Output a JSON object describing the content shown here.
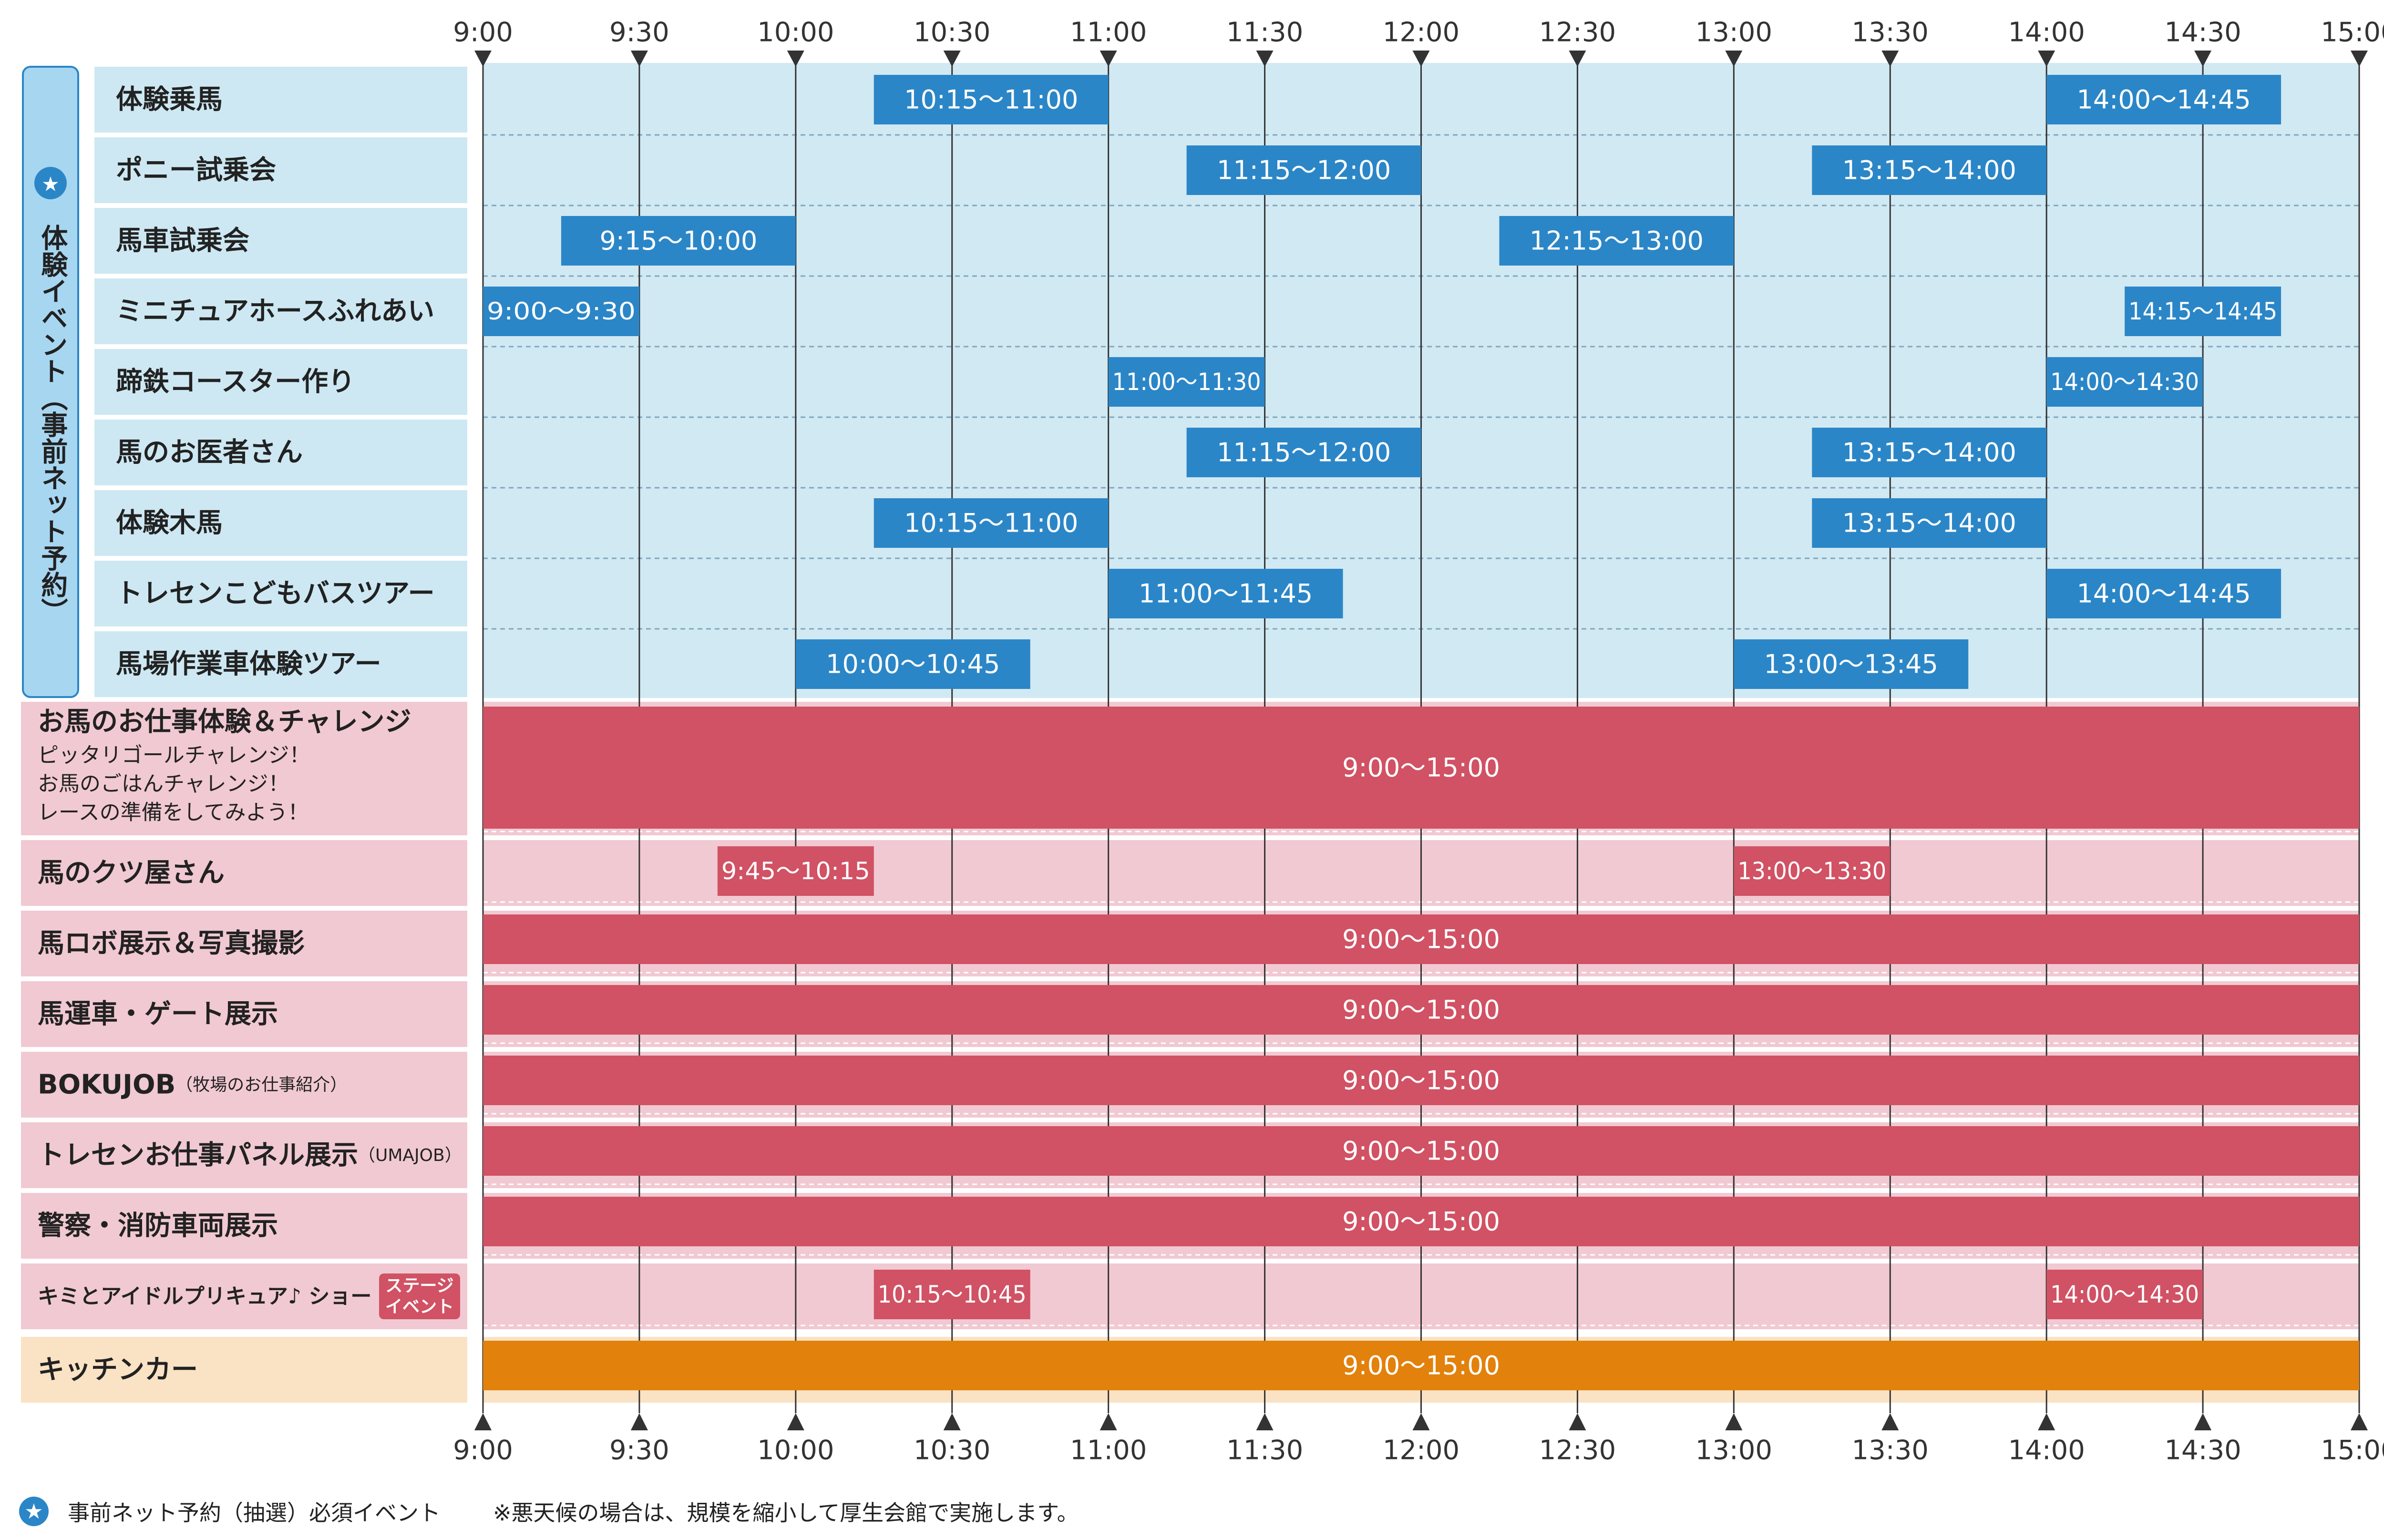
{
  "colors": {
    "header_bg": "#d1e9f3",
    "label_bg_blue": "#cde8f3",
    "bar_blue": "#2b86c7",
    "label_bg_pink": "#f1c9d2",
    "bar_red": "#d05264",
    "label_bg_orange": "#fae2c4",
    "bar_orange": "#e2810c",
    "vertical_box": "#a7d6f1",
    "vertical_box_border": "#2b86c7",
    "star": "#2b86c7"
  },
  "chart_data": {
    "type": "gantt",
    "time_ticks": [
      "9:00",
      "9:30",
      "10:00",
      "10:30",
      "11:00",
      "11:30",
      "12:00",
      "12:30",
      "13:00",
      "13:30",
      "14:00",
      "14:30",
      "15:00"
    ],
    "x_range": [
      "9:00",
      "15:00"
    ],
    "group_label": "体験イベント（事前ネット予約）",
    "group_star": "★",
    "rows": [
      {
        "label": "体験乗馬",
        "section": "blue",
        "bars": [
          {
            "start": "10:15",
            "end": "11:00",
            "text": "10:15〜11:00"
          },
          {
            "start": "14:00",
            "end": "14:45",
            "text": "14:00〜14:45"
          }
        ]
      },
      {
        "label": "ポニー試乗会",
        "section": "blue",
        "bars": [
          {
            "start": "11:15",
            "end": "12:00",
            "text": "11:15〜12:00"
          },
          {
            "start": "13:15",
            "end": "14:00",
            "text": "13:15〜14:00"
          }
        ]
      },
      {
        "label": "馬車試乗会",
        "section": "blue",
        "bars": [
          {
            "start": "9:15",
            "end": "10:00",
            "text": "9:15〜10:00"
          },
          {
            "start": "12:15",
            "end": "13:00",
            "text": "12:15〜13:00"
          }
        ]
      },
      {
        "label": "ミニチュアホースふれあい",
        "section": "blue",
        "bars": [
          {
            "start": "9:00",
            "end": "9:30",
            "text": "9:00〜9:30"
          },
          {
            "start": "14:15",
            "end": "14:45",
            "text": "14:15〜14:45"
          }
        ]
      },
      {
        "label": "蹄鉄コースター作り",
        "section": "blue",
        "bars": [
          {
            "start": "11:00",
            "end": "11:30",
            "text": "11:00〜11:30"
          },
          {
            "start": "14:00",
            "end": "14:30",
            "text": "14:00〜14:30"
          }
        ]
      },
      {
        "label": "馬のお医者さん",
        "section": "blue",
        "bars": [
          {
            "start": "11:15",
            "end": "12:00",
            "text": "11:15〜12:00"
          },
          {
            "start": "13:15",
            "end": "14:00",
            "text": "13:15〜14:00"
          }
        ]
      },
      {
        "label": "体験木馬",
        "section": "blue",
        "bars": [
          {
            "start": "10:15",
            "end": "11:00",
            "text": "10:15〜11:00"
          },
          {
            "start": "13:15",
            "end": "14:00",
            "text": "13:15〜14:00"
          }
        ]
      },
      {
        "label": "トレセンこどもバスツアー",
        "section": "blue",
        "bars": [
          {
            "start": "11:00",
            "end": "11:45",
            "text": "11:00〜11:45"
          },
          {
            "start": "14:00",
            "end": "14:45",
            "text": "14:00〜14:45"
          }
        ]
      },
      {
        "label": "馬場作業車体験ツアー",
        "section": "blue",
        "bars": [
          {
            "start": "10:00",
            "end": "10:45",
            "text": "10:00〜10:45"
          },
          {
            "start": "13:00",
            "end": "13:45",
            "text": "13:00〜13:45"
          }
        ]
      },
      {
        "label": "お馬のお仕事体験＆チャレンジ",
        "sublines": [
          "ピッタリゴールチャレンジ！",
          "お馬のごはんチャレンジ！",
          "レースの準備をしてみよう！"
        ],
        "section": "red",
        "tall": true,
        "bars": [
          {
            "start": "9:00",
            "end": "15:00",
            "text": "9:00〜15:00"
          }
        ]
      },
      {
        "label": "馬のクツ屋さん",
        "section": "red",
        "bars": [
          {
            "start": "9:45",
            "end": "10:15",
            "text": "9:45〜10:15"
          },
          {
            "start": "13:00",
            "end": "13:30",
            "text": "13:00〜13:30"
          }
        ]
      },
      {
        "label": "馬ロボ展示＆写真撮影",
        "section": "red",
        "bars": [
          {
            "start": "9:00",
            "end": "15:00",
            "text": "9:00〜15:00"
          }
        ]
      },
      {
        "label": "馬運車・ゲート展示",
        "section": "red",
        "bars": [
          {
            "start": "9:00",
            "end": "15:00",
            "text": "9:00〜15:00"
          }
        ]
      },
      {
        "label": "BOKUJOB",
        "note": "（牧場のお仕事紹介）",
        "section": "red",
        "bars": [
          {
            "start": "9:00",
            "end": "15:00",
            "text": "9:00〜15:00"
          }
        ]
      },
      {
        "label": "トレセンお仕事パネル展示",
        "note": "（UMAJOB）",
        "section": "red",
        "bars": [
          {
            "start": "9:00",
            "end": "15:00",
            "text": "9:00〜15:00"
          }
        ]
      },
      {
        "label": "警察・消防車両展示",
        "section": "red",
        "bars": [
          {
            "start": "9:00",
            "end": "15:00",
            "text": "9:00〜15:00"
          }
        ]
      },
      {
        "label": "キミとアイドルプリキュア♪ ショー",
        "badge": [
          "ステージ",
          "イベント"
        ],
        "section": "red",
        "bars": [
          {
            "start": "10:15",
            "end": "10:45",
            "text": "10:15〜10:45"
          },
          {
            "start": "14:00",
            "end": "14:30",
            "text": "14:00〜14:30"
          }
        ]
      },
      {
        "label": "キッチンカー",
        "section": "orange",
        "bars": [
          {
            "start": "9:00",
            "end": "15:00",
            "text": "9:00〜15:00"
          }
        ]
      }
    ]
  },
  "footer": {
    "star": "★",
    "legend_text": "事前ネット予約（抽選）必須イベント",
    "note": "※悪天候の場合は、規模を縮小して厚生会館で実施します。"
  }
}
